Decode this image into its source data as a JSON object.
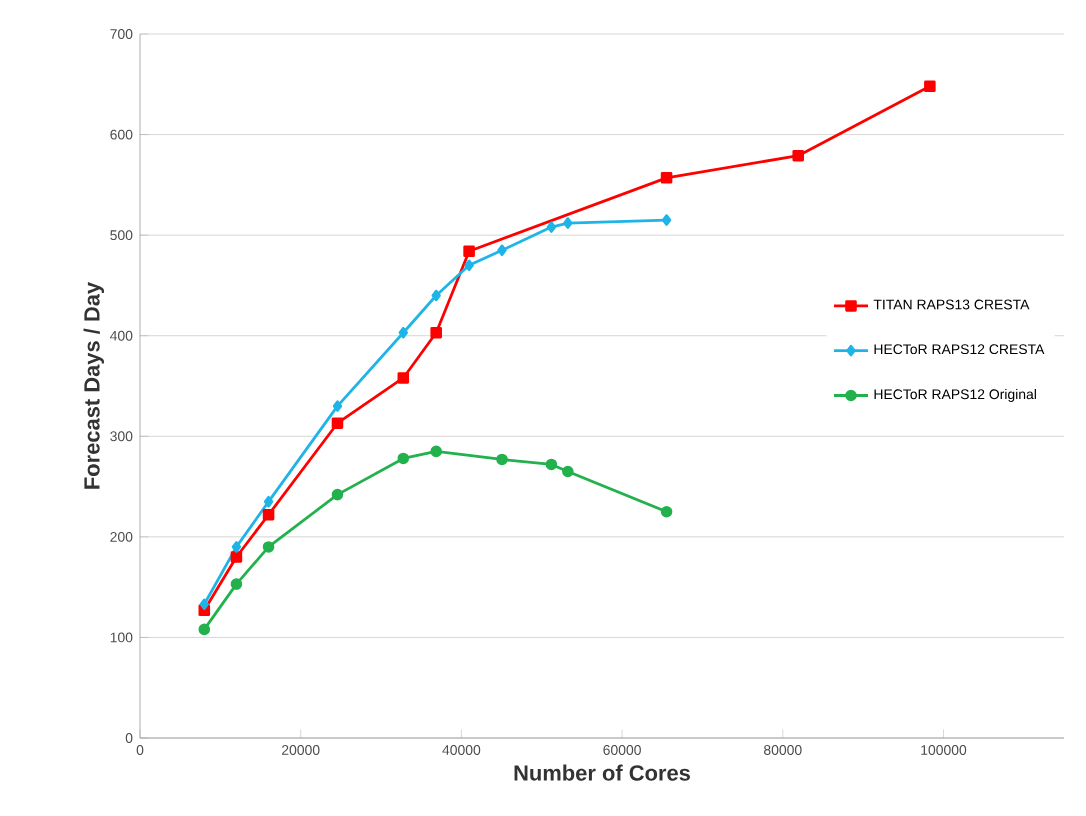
{
  "chart_data": {
    "type": "line",
    "xlabel": "Number of Cores",
    "ylabel": "Forecast Days / Day",
    "xlim": [
      0,
      115000
    ],
    "xticks": [
      0,
      20000,
      40000,
      60000,
      80000,
      100000
    ],
    "ylim": [
      0,
      700
    ],
    "yticks": [
      0,
      100,
      200,
      300,
      400,
      500,
      600,
      700
    ],
    "grid": "y",
    "legend": "right",
    "series": [
      {
        "name": "TITAN RAPS13 CRESTA",
        "color": "#ff0000",
        "marker": "square",
        "x": [
          8000,
          12000,
          16000,
          24576,
          32768,
          36864,
          40960,
          65536,
          81920,
          98304
        ],
        "values": [
          127,
          180,
          222,
          313,
          358,
          403,
          484,
          557,
          579,
          648
        ]
      },
      {
        "name": "HECToR RAPS12 CRESTA",
        "color": "#1fb4e8",
        "marker": "diamond",
        "x": [
          8000,
          12000,
          16000,
          24576,
          32768,
          36864,
          40960,
          45056,
          51200,
          53248,
          65536
        ],
        "values": [
          133,
          190,
          235,
          330,
          403,
          440,
          470,
          485,
          508,
          512,
          515
        ]
      },
      {
        "name": "HECToR RAPS12 Original",
        "color": "#22b14c",
        "marker": "circle",
        "x": [
          8000,
          12000,
          16000,
          24576,
          32768,
          36864,
          45056,
          51200,
          53248,
          65536
        ],
        "values": [
          108,
          153,
          190,
          242,
          278,
          285,
          277,
          272,
          265,
          225
        ]
      }
    ]
  }
}
